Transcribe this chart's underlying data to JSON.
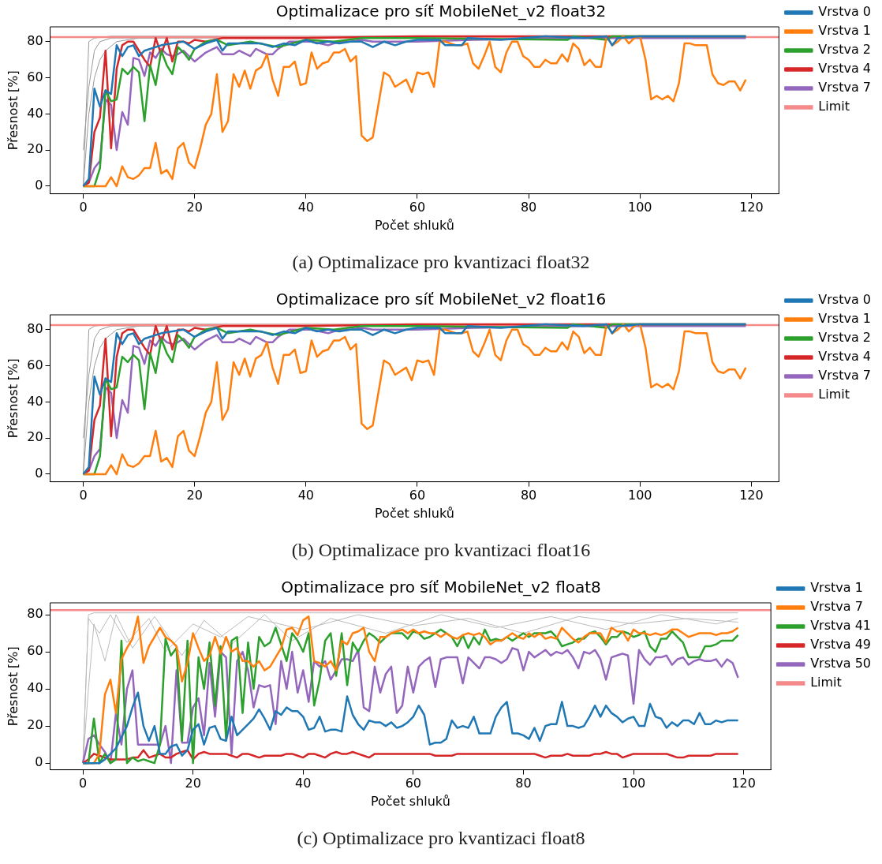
{
  "chart_data": [
    {
      "type": "line",
      "title": "Optimalizace pro síť MobileNet_v2 float32",
      "xlabel": "Počet shluků",
      "ylabel": "Přesnost [%]",
      "annotations": [
        "(a) Optimalizace pro kvantizaci float32"
      ],
      "xlim": [
        -5.95,
        124.95
      ],
      "ylim": [
        -4.2,
        88.2
      ],
      "xticks": [
        0,
        20,
        40,
        60,
        80,
        100,
        120
      ],
      "yticks": [
        0,
        20,
        40,
        60,
        80
      ],
      "grid": false,
      "legend": "top right",
      "marker": "none",
      "line_style": "solid",
      "ref_lines": [
        {
          "axis": "y",
          "value": 82.5,
          "label": "Limit",
          "color": "#f58a8a"
        }
      ],
      "x": [
        0,
        1,
        2,
        3,
        4,
        5,
        6,
        7,
        8,
        9,
        10,
        11,
        12,
        13,
        14,
        15,
        16,
        17,
        18,
        19,
        20,
        21,
        22,
        23,
        24,
        25,
        26,
        27,
        28,
        29,
        30,
        31,
        32,
        33,
        34,
        35,
        36,
        37,
        38,
        39,
        40,
        41,
        42,
        43,
        44,
        45,
        46,
        47,
        48,
        49,
        50,
        51,
        52,
        53,
        54,
        55,
        56,
        57,
        58,
        59,
        60,
        61,
        62,
        63,
        64,
        65,
        66,
        67,
        68,
        69,
        70,
        71,
        72,
        73,
        74,
        75,
        76,
        77,
        78,
        79,
        80,
        81,
        82,
        83,
        84,
        85,
        86,
        87,
        88,
        89,
        90,
        91,
        92,
        93,
        94,
        95,
        96,
        97,
        98,
        99,
        100,
        101,
        102,
        103,
        104,
        105,
        106,
        107,
        108,
        109,
        110,
        111,
        112,
        113,
        114,
        115,
        116,
        117,
        118,
        119
      ],
      "series": [
        {
          "name": "Vrstva 0",
          "color": "#1f77b4",
          "x": [
            0,
            1,
            2,
            3,
            4,
            5,
            6,
            7,
            8,
            9,
            10,
            11,
            12,
            14,
            16,
            18,
            20,
            22,
            24,
            25,
            26,
            28,
            30,
            32,
            34,
            36,
            38,
            40,
            42,
            44,
            46,
            48,
            50,
            52,
            54,
            56,
            58,
            60,
            64,
            65,
            68,
            69,
            75,
            83,
            90,
            94,
            95,
            96,
            100,
            110,
            119
          ],
          "values": [
            0,
            4,
            54,
            44,
            53,
            51,
            78,
            72,
            77,
            78,
            72,
            75,
            76,
            78,
            79,
            80,
            76,
            79,
            81,
            75,
            79,
            79,
            79,
            79,
            77,
            79,
            78,
            81,
            79,
            80,
            79,
            80,
            80,
            77,
            80,
            78,
            80,
            81,
            81,
            78,
            78,
            82,
            81,
            83,
            82,
            83,
            78,
            82,
            83,
            83,
            83
          ]
        },
        {
          "name": "Vrstva 1",
          "color": "#ff7f0e",
          "values": [
            0,
            0,
            0,
            0,
            0,
            5,
            0,
            11,
            5,
            4,
            6,
            10,
            10,
            24,
            7,
            9,
            4,
            21,
            24,
            13,
            10,
            21,
            34,
            40,
            62,
            30,
            36,
            62,
            55,
            64,
            54,
            64,
            66,
            73,
            59,
            50,
            66,
            66,
            69,
            56,
            57,
            74,
            65,
            68,
            69,
            74,
            74,
            76,
            69,
            72,
            28,
            25,
            27,
            45,
            63,
            61,
            55,
            57,
            59,
            52,
            63,
            62,
            63,
            55,
            80,
            80,
            79,
            78,
            78,
            79,
            68,
            65,
            72,
            80,
            66,
            63,
            74,
            80,
            80,
            72,
            70,
            66,
            66,
            70,
            68,
            68,
            73,
            69,
            79,
            76,
            67,
            70,
            66,
            66,
            83,
            78,
            80,
            83,
            79,
            82,
            83,
            70,
            48,
            50,
            48,
            50,
            47,
            57,
            79,
            79,
            78,
            78,
            78,
            62,
            57,
            56,
            58,
            58,
            53,
            59
          ]
        },
        {
          "name": "Vrstva 2",
          "color": "#2ca02c",
          "x": [
            0,
            2,
            3,
            4,
            5,
            6,
            7,
            8,
            9,
            10,
            11,
            12,
            13,
            14,
            15,
            16,
            17,
            18,
            19,
            20,
            22,
            24,
            26,
            30,
            35,
            40,
            45,
            50,
            60,
            87,
            88,
            94,
            95,
            100,
            119
          ],
          "values": [
            0,
            0,
            10,
            53,
            47,
            48,
            65,
            62,
            66,
            63,
            36,
            67,
            56,
            75,
            67,
            62,
            77,
            74,
            70,
            76,
            80,
            81,
            78,
            80,
            77,
            81,
            80,
            82,
            82,
            81,
            83,
            81,
            83,
            83,
            83
          ]
        },
        {
          "name": "Vrstva 4",
          "color": "#d62728",
          "x": [
            0,
            1,
            2,
            3,
            4,
            5,
            6,
            7,
            8,
            9,
            10,
            11,
            12,
            13,
            14,
            15,
            16,
            17,
            18,
            19,
            20,
            22,
            25,
            30,
            40,
            60,
            119
          ],
          "values": [
            0,
            2,
            30,
            38,
            75,
            21,
            65,
            78,
            80,
            80,
            75,
            70,
            66,
            82,
            73,
            82,
            69,
            80,
            80,
            79,
            81,
            80,
            82,
            82,
            82,
            83,
            83
          ]
        },
        {
          "name": "Vrstva 7",
          "color": "#9467bd",
          "x": [
            0,
            1,
            2,
            3,
            4,
            5,
            6,
            7,
            8,
            9,
            10,
            11,
            12,
            13,
            14,
            15,
            16,
            17,
            18,
            19,
            20,
            22,
            24,
            25,
            27,
            28,
            30,
            31,
            33,
            34,
            35,
            37,
            39,
            41,
            44,
            46,
            48,
            50,
            52,
            55,
            57,
            60,
            70,
            90,
            119
          ],
          "values": [
            0,
            2,
            10,
            14,
            48,
            45,
            20,
            41,
            34,
            71,
            70,
            61,
            74,
            71,
            76,
            73,
            72,
            73,
            75,
            72,
            69,
            74,
            77,
            73,
            73,
            75,
            72,
            76,
            73,
            73,
            76,
            80,
            80,
            80,
            78,
            80,
            80,
            81,
            80,
            80,
            80,
            80,
            81,
            82,
            82
          ]
        },
        {
          "color": "#999999",
          "x": [
            0,
            1,
            2,
            5,
            119
          ],
          "values": [
            0,
            80,
            82,
            83,
            83
          ]
        },
        {
          "color": "#999999",
          "x": [
            0,
            1,
            2,
            3,
            5,
            119
          ],
          "values": [
            20,
            55,
            75,
            80,
            82,
            83
          ]
        },
        {
          "color": "#999999",
          "x": [
            0,
            1,
            2,
            3,
            4,
            6,
            10,
            119
          ],
          "values": [
            0,
            40,
            60,
            70,
            75,
            80,
            82,
            83
          ]
        }
      ]
    },
    {
      "type": "line",
      "title": "Optimalizace pro síť MobileNet_v2 float16",
      "xlabel": "Počet shluků",
      "ylabel": "Přesnost [%]",
      "annotations": [
        "(b) Optimalizace pro kvantizaci float16"
      ],
      "xlim": [
        -5.95,
        124.95
      ],
      "ylim": [
        -4.2,
        88.2
      ],
      "xticks": [
        0,
        20,
        40,
        60,
        80,
        100,
        120
      ],
      "yticks": [
        0,
        20,
        40,
        60,
        80
      ],
      "grid": false,
      "legend": "top right",
      "marker": "none",
      "line_style": "solid",
      "ref_lines": [
        {
          "axis": "y",
          "value": 82.5,
          "label": "Limit",
          "color": "#f58a8a"
        }
      ],
      "x": [
        0,
        1,
        2,
        3,
        4,
        5,
        6,
        7,
        8,
        9,
        10,
        11,
        12,
        13,
        14,
        15,
        16,
        17,
        18,
        19,
        20,
        21,
        22,
        23,
        24,
        25,
        26,
        27,
        28,
        29,
        30,
        31,
        32,
        33,
        34,
        35,
        36,
        37,
        38,
        39,
        40,
        41,
        42,
        43,
        44,
        45,
        46,
        47,
        48,
        49,
        50,
        51,
        52,
        53,
        54,
        55,
        56,
        57,
        58,
        59,
        60,
        61,
        62,
        63,
        64,
        65,
        66,
        67,
        68,
        69,
        70,
        71,
        72,
        73,
        74,
        75,
        76,
        77,
        78,
        79,
        80,
        81,
        82,
        83,
        84,
        85,
        86,
        87,
        88,
        89,
        90,
        91,
        92,
        93,
        94,
        95,
        96,
        97,
        98,
        99,
        100,
        101,
        102,
        103,
        104,
        105,
        106,
        107,
        108,
        109,
        110,
        111,
        112,
        113,
        114,
        115,
        116,
        117,
        118,
        119
      ],
      "series": [
        {
          "name": "Vrstva 0",
          "color": "#1f77b4",
          "x": [
            0,
            1,
            2,
            3,
            4,
            5,
            6,
            7,
            8,
            9,
            10,
            11,
            12,
            14,
            16,
            18,
            20,
            22,
            24,
            25,
            26,
            28,
            30,
            32,
            34,
            36,
            38,
            40,
            42,
            44,
            46,
            48,
            50,
            52,
            54,
            56,
            58,
            60,
            64,
            65,
            68,
            69,
            75,
            83,
            90,
            94,
            95,
            96,
            100,
            110,
            119
          ],
          "values": [
            0,
            4,
            54,
            44,
            53,
            51,
            78,
            72,
            77,
            78,
            72,
            75,
            76,
            78,
            79,
            80,
            76,
            79,
            81,
            75,
            79,
            79,
            79,
            79,
            77,
            79,
            78,
            81,
            79,
            80,
            79,
            80,
            80,
            77,
            80,
            78,
            80,
            81,
            81,
            78,
            78,
            82,
            81,
            83,
            82,
            83,
            78,
            82,
            83,
            83,
            83
          ]
        },
        {
          "name": "Vrstva 1",
          "color": "#ff7f0e",
          "values": [
            0,
            0,
            0,
            0,
            0,
            5,
            0,
            11,
            5,
            4,
            6,
            10,
            10,
            24,
            7,
            9,
            4,
            21,
            24,
            13,
            10,
            21,
            34,
            40,
            62,
            30,
            36,
            62,
            55,
            64,
            54,
            64,
            66,
            73,
            59,
            50,
            66,
            66,
            69,
            56,
            57,
            74,
            65,
            68,
            69,
            74,
            74,
            76,
            69,
            72,
            28,
            25,
            27,
            45,
            63,
            61,
            55,
            57,
            59,
            52,
            63,
            62,
            63,
            55,
            80,
            80,
            79,
            78,
            78,
            79,
            68,
            65,
            72,
            80,
            66,
            63,
            74,
            80,
            80,
            72,
            70,
            66,
            66,
            70,
            68,
            68,
            73,
            69,
            79,
            76,
            67,
            70,
            66,
            66,
            83,
            78,
            80,
            83,
            79,
            82,
            83,
            70,
            48,
            50,
            48,
            50,
            47,
            57,
            79,
            79,
            78,
            78,
            78,
            62,
            57,
            56,
            58,
            58,
            53,
            59
          ]
        },
        {
          "name": "Vrstva 2",
          "color": "#2ca02c",
          "x": [
            0,
            2,
            3,
            4,
            5,
            6,
            7,
            8,
            9,
            10,
            11,
            12,
            13,
            14,
            15,
            16,
            17,
            18,
            19,
            20,
            22,
            24,
            26,
            30,
            35,
            40,
            45,
            50,
            60,
            87,
            88,
            94,
            95,
            100,
            119
          ],
          "values": [
            0,
            0,
            10,
            53,
            47,
            48,
            65,
            62,
            66,
            63,
            36,
            67,
            56,
            75,
            67,
            62,
            77,
            74,
            70,
            76,
            80,
            81,
            78,
            80,
            77,
            81,
            80,
            82,
            82,
            81,
            83,
            81,
            83,
            83,
            83
          ]
        },
        {
          "name": "Vrstva 4",
          "color": "#d62728",
          "x": [
            0,
            1,
            2,
            3,
            4,
            5,
            6,
            7,
            8,
            9,
            10,
            11,
            12,
            13,
            14,
            15,
            16,
            17,
            18,
            19,
            20,
            22,
            25,
            30,
            40,
            60,
            119
          ],
          "values": [
            0,
            2,
            30,
            38,
            75,
            21,
            65,
            78,
            80,
            80,
            75,
            70,
            66,
            82,
            73,
            82,
            69,
            80,
            80,
            79,
            81,
            80,
            82,
            82,
            82,
            83,
            83
          ]
        },
        {
          "name": "Vrstva 7",
          "color": "#9467bd",
          "x": [
            0,
            1,
            2,
            3,
            4,
            5,
            6,
            7,
            8,
            9,
            10,
            11,
            12,
            13,
            14,
            15,
            16,
            17,
            18,
            19,
            20,
            22,
            24,
            25,
            27,
            28,
            30,
            31,
            33,
            34,
            35,
            37,
            39,
            41,
            44,
            46,
            48,
            50,
            52,
            55,
            57,
            60,
            70,
            90,
            119
          ],
          "values": [
            0,
            2,
            10,
            14,
            48,
            45,
            20,
            41,
            34,
            71,
            70,
            61,
            74,
            71,
            76,
            73,
            72,
            73,
            75,
            72,
            69,
            74,
            77,
            73,
            73,
            75,
            72,
            76,
            73,
            73,
            76,
            80,
            80,
            80,
            78,
            80,
            80,
            81,
            80,
            80,
            80,
            80,
            81,
            82,
            82
          ]
        },
        {
          "color": "#999999",
          "x": [
            0,
            1,
            2,
            5,
            119
          ],
          "values": [
            0,
            80,
            82,
            83,
            83
          ]
        },
        {
          "color": "#999999",
          "x": [
            0,
            1,
            2,
            3,
            5,
            119
          ],
          "values": [
            20,
            55,
            75,
            80,
            82,
            83
          ]
        },
        {
          "color": "#999999",
          "x": [
            0,
            1,
            2,
            3,
            4,
            6,
            10,
            119
          ],
          "values": [
            0,
            40,
            60,
            70,
            75,
            80,
            82,
            83
          ]
        }
      ]
    },
    {
      "type": "line",
      "title": "Optimalizace pro síť MobileNet_v2 float8",
      "xlabel": "Počet shluků",
      "ylabel": "Přesnost [%]",
      "annotations": [
        "(c) Optimalizace pro kvantizaci float8"
      ],
      "xlim": [
        -5.95,
        124.95
      ],
      "ylim": [
        -3.6,
        86.4
      ],
      "xticks": [
        0,
        20,
        40,
        60,
        80,
        100,
        120
      ],
      "yticks": [
        0,
        20,
        40,
        60,
        80
      ],
      "grid": false,
      "legend": "top right",
      "marker": "none",
      "line_style": "solid",
      "ref_lines": [
        {
          "axis": "y",
          "value": 82.5,
          "label": "Limit",
          "color": "#f58a8a"
        }
      ],
      "x": [
        0,
        1,
        2,
        3,
        4,
        5,
        6,
        7,
        8,
        9,
        10,
        11,
        12,
        13,
        14,
        15,
        16,
        17,
        18,
        19,
        20,
        21,
        22,
        23,
        24,
        25,
        26,
        27,
        28,
        29,
        30,
        31,
        32,
        33,
        34,
        35,
        36,
        37,
        38,
        39,
        40,
        41,
        42,
        43,
        44,
        45,
        46,
        47,
        48,
        49,
        50,
        51,
        52,
        53,
        54,
        55,
        56,
        57,
        58,
        59,
        60,
        61,
        62,
        63,
        64,
        65,
        66,
        67,
        68,
        69,
        70,
        71,
        72,
        73,
        74,
        75,
        76,
        77,
        78,
        79,
        80,
        81,
        82,
        83,
        84,
        85,
        86,
        87,
        88,
        89,
        90,
        91,
        92,
        93,
        94,
        95,
        96,
        97,
        98,
        99,
        100,
        101,
        102,
        103,
        104,
        105,
        106,
        107,
        108,
        109,
        110,
        111,
        112,
        113,
        114,
        115,
        116,
        117,
        118,
        119
      ],
      "series": [
        {
          "name": "Vrstva 1",
          "color": "#1f77b4",
          "values": [
            0,
            0,
            0,
            0,
            2,
            5,
            8,
            14,
            20,
            30,
            38,
            20,
            12,
            20,
            5,
            5,
            9,
            10,
            4,
            7,
            18,
            21,
            10,
            19,
            20,
            13,
            12,
            25,
            15,
            18,
            21,
            24,
            29,
            24,
            18,
            28,
            26,
            30,
            28,
            28,
            25,
            18,
            19,
            25,
            17,
            18,
            18,
            17,
            36,
            26,
            21,
            18,
            23,
            22,
            22,
            20,
            22,
            19,
            20,
            22,
            25,
            31,
            26,
            10,
            11,
            11,
            13,
            23,
            19,
            20,
            19,
            25,
            16,
            16,
            16,
            25,
            30,
            33,
            16,
            16,
            15,
            13,
            19,
            12,
            20,
            21,
            21,
            33,
            20,
            20,
            19,
            20,
            25,
            31,
            25,
            31,
            27,
            25,
            22,
            24,
            25,
            20,
            20,
            32,
            25,
            24,
            19,
            22,
            20,
            23,
            23,
            21,
            27,
            21,
            21,
            23,
            22,
            23,
            23,
            23
          ]
        },
        {
          "name": "Vrstva 7",
          "color": "#ff7f0e",
          "values": [
            0,
            0,
            0,
            5,
            37,
            45,
            27,
            56,
            62,
            67,
            79,
            54,
            63,
            68,
            73,
            68,
            66,
            63,
            44,
            54,
            70,
            62,
            55,
            58,
            68,
            59,
            68,
            60,
            62,
            55,
            55,
            52,
            55,
            50,
            52,
            57,
            62,
            72,
            73,
            69,
            77,
            79,
            55,
            54,
            52,
            55,
            50,
            66,
            64,
            70,
            71,
            73,
            60,
            55,
            68,
            68,
            70,
            71,
            72,
            70,
            72,
            70,
            71,
            70,
            70,
            68,
            70,
            68,
            67,
            69,
            70,
            69,
            70,
            68,
            64,
            66,
            66,
            68,
            70,
            68,
            67,
            70,
            68,
            70,
            67,
            68,
            67,
            73,
            70,
            67,
            65,
            68,
            70,
            70,
            70,
            65,
            73,
            71,
            71,
            66,
            72,
            70,
            70,
            69,
            70,
            69,
            70,
            72,
            72,
            70,
            68,
            69,
            70,
            70,
            70,
            69,
            70,
            70,
            71,
            73
          ]
        },
        {
          "name": "Vrstva 41",
          "color": "#2ca02c",
          "values": [
            0,
            0,
            24,
            0,
            5,
            0,
            2,
            66,
            0,
            3,
            1,
            2,
            1,
            0,
            10,
            67,
            58,
            62,
            12,
            66,
            0,
            57,
            40,
            65,
            31,
            63,
            13,
            66,
            68,
            27,
            65,
            40,
            68,
            63,
            65,
            73,
            64,
            55,
            70,
            66,
            60,
            70,
            31,
            45,
            66,
            70,
            47,
            70,
            42,
            65,
            60,
            66,
            70,
            68,
            65,
            68,
            70,
            70,
            70,
            67,
            71,
            70,
            67,
            68,
            70,
            72,
            70,
            68,
            63,
            69,
            62,
            68,
            64,
            72,
            66,
            67,
            66,
            68,
            66,
            68,
            70,
            68,
            70,
            70,
            70,
            71,
            68,
            63,
            64,
            65,
            67,
            67,
            70,
            71,
            68,
            64,
            68,
            68,
            71,
            70,
            68,
            69,
            71,
            63,
            60,
            67,
            67,
            71,
            68,
            65,
            57,
            57,
            57,
            63,
            63,
            64,
            66,
            66,
            66,
            69
          ]
        },
        {
          "name": "Vrstva 49",
          "color": "#d62728",
          "values": [
            0,
            2,
            5,
            4,
            3,
            2,
            2,
            2,
            2,
            3,
            3,
            7,
            3,
            4,
            5,
            3,
            3,
            5,
            6,
            7,
            2,
            5,
            6,
            5,
            5,
            5,
            5,
            4,
            3,
            5,
            5,
            4,
            3,
            4,
            4,
            4,
            4,
            5,
            5,
            4,
            3,
            5,
            5,
            4,
            3,
            5,
            6,
            5,
            5,
            6,
            5,
            4,
            3,
            5,
            5,
            5,
            5,
            5,
            5,
            5,
            5,
            5,
            5,
            5,
            4,
            4,
            4,
            4,
            5,
            5,
            5,
            5,
            5,
            5,
            5,
            5,
            5,
            5,
            5,
            5,
            5,
            5,
            5,
            4,
            3,
            4,
            4,
            4,
            5,
            4,
            4,
            4,
            4,
            5,
            5,
            6,
            5,
            5,
            3,
            4,
            5,
            5,
            5,
            5,
            5,
            5,
            5,
            4,
            3,
            3,
            4,
            4,
            4,
            4,
            4,
            5,
            5,
            5,
            5,
            5
          ]
        },
        {
          "name": "Vrstva 50",
          "color": "#9467bd",
          "values": [
            0,
            13,
            15,
            10,
            6,
            0,
            27,
            10,
            40,
            50,
            10,
            10,
            10,
            10,
            10,
            20,
            0,
            50,
            11,
            11,
            30,
            35,
            15,
            54,
            25,
            60,
            57,
            5,
            55,
            60,
            50,
            30,
            42,
            41,
            42,
            21,
            55,
            40,
            60,
            38,
            50,
            33,
            55,
            52,
            55,
            45,
            50,
            56,
            56,
            55,
            61,
            30,
            28,
            52,
            38,
            48,
            52,
            27,
            31,
            52,
            38,
            52,
            55,
            57,
            41,
            56,
            57,
            57,
            57,
            43,
            57,
            54,
            51,
            57,
            57,
            56,
            54,
            56,
            62,
            61,
            50,
            60,
            57,
            59,
            61,
            58,
            60,
            59,
            61,
            57,
            51,
            60,
            59,
            61,
            56,
            45,
            57,
            58,
            59,
            58,
            32,
            61,
            56,
            53,
            57,
            57,
            58,
            53,
            56,
            57,
            53,
            55,
            56,
            55,
            55,
            56,
            52,
            56,
            54,
            46
          ]
        },
        {
          "color": "#bbbbbb",
          "x": [
            0,
            1,
            2,
            119
          ],
          "values": [
            0,
            80,
            81,
            81
          ]
        },
        {
          "color": "#bbbbbb",
          "x": [
            0,
            1,
            3,
            5,
            8,
            12,
            15,
            20,
            25,
            30,
            40,
            50,
            60,
            70,
            80,
            90,
            100,
            110,
            119
          ],
          "values": [
            0,
            78,
            70,
            80,
            65,
            78,
            60,
            75,
            68,
            79,
            72,
            80,
            74,
            78,
            70,
            79,
            75,
            78,
            76
          ]
        },
        {
          "color": "#bbbbbb",
          "x": [
            0,
            1,
            2,
            4,
            6,
            9,
            13,
            18,
            22,
            27,
            33,
            38,
            45,
            55,
            65,
            75,
            85,
            95,
            105,
            115,
            119
          ],
          "values": [
            0,
            40,
            75,
            55,
            80,
            62,
            79,
            58,
            77,
            64,
            80,
            66,
            78,
            70,
            80,
            73,
            79,
            72,
            80,
            75,
            78
          ]
        }
      ]
    }
  ]
}
